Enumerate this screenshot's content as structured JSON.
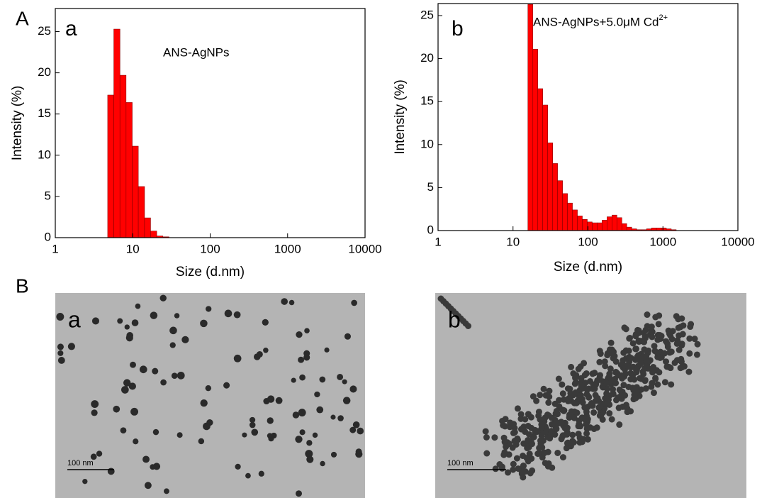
{
  "figure": {
    "panel_labels": [
      "A",
      "B"
    ]
  },
  "chart_data": [
    {
      "type": "histogram",
      "panel": "a",
      "annotation": "ANS-AgNPs",
      "xlabel": "Size (d.nm)",
      "ylabel": "Intensity (%)",
      "xscale": "log",
      "xlim": [
        1,
        10000
      ],
      "xticks": [
        1,
        10,
        100,
        1000,
        10000
      ],
      "ylim": [
        0,
        27.8
      ],
      "yticks": [
        0,
        5,
        10,
        15,
        20,
        25
      ],
      "color": "#ff0000",
      "bins": [
        4.75,
        5.7,
        6.84,
        8.2,
        9.85,
        11.8,
        14.2,
        17.0,
        20.4,
        24.5,
        29.4
      ],
      "values": [
        17.3,
        25.3,
        19.7,
        16.4,
        11.1,
        6.2,
        2.4,
        0.8,
        0.2,
        0.1
      ]
    },
    {
      "type": "histogram",
      "panel": "b",
      "annotation": "ANS-AgNPs+5.0μM Cd",
      "annotation_superscript": "2+",
      "xlabel": "Size (d.nm)",
      "ylabel": "Intensity (%)",
      "xscale": "log",
      "xlim": [
        1,
        10000
      ],
      "xticks": [
        1,
        10,
        100,
        1000,
        10000
      ],
      "ylim": [
        0,
        26.4
      ],
      "yticks": [
        0,
        5,
        10,
        15,
        20,
        25
      ],
      "color": "#ff0000",
      "bins": [
        15.8,
        18.4,
        21.4,
        24.9,
        29.0,
        33.8,
        39.3,
        45.8,
        53.3,
        62.0,
        72.2,
        84.0,
        97.8,
        113.8,
        132.5,
        154.2,
        179.5,
        209,
        243,
        283,
        329,
        383,
        446,
        519,
        604,
        703,
        818,
        953,
        1109,
        1291,
        1503
      ],
      "values": [
        26.3,
        21.1,
        16.5,
        14.6,
        10.2,
        7.8,
        5.8,
        4.3,
        3.2,
        2.4,
        1.7,
        1.3,
        1.0,
        0.9,
        0.9,
        1.2,
        1.6,
        1.8,
        1.5,
        0.8,
        0.4,
        0.2,
        0.1,
        0.1,
        0.2,
        0.3,
        0.3,
        0.3,
        0.2,
        0.1
      ]
    }
  ],
  "images": [
    {
      "label": "a",
      "scale_bar": "100 nm"
    },
    {
      "label": "b",
      "scale_bar": "100 nm"
    }
  ]
}
